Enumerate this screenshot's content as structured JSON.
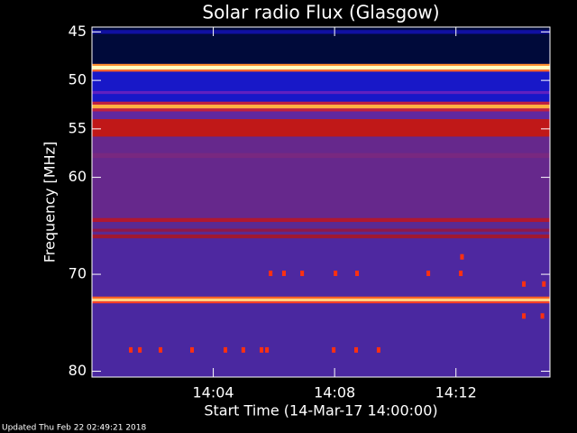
{
  "chart_data": {
    "type": "spectrogram",
    "title": "Solar radio Flux (Glasgow)",
    "y_label": "Frequency [MHz]",
    "x_label": "Start Time (14-Mar-17 14:00:00)",
    "footer": "Updated Thu Feb 22 02:49:21 2018",
    "background": "#5a2a92",
    "xlim": [
      0,
      15.1
    ],
    "xticks": [
      {
        "value": 4,
        "label": "14:04"
      },
      {
        "value": 8,
        "label": "14:08"
      },
      {
        "value": 12,
        "label": "14:12"
      }
    ],
    "ylim": [
      44.5,
      80.6
    ],
    "yticks": [
      45,
      50,
      55,
      60,
      70,
      80
    ],
    "y_inverted": true,
    "bands": [
      {
        "from": 44.5,
        "to": 48.3,
        "color": "#000a3a"
      },
      {
        "from": 44.8,
        "to": 45.2,
        "color": "#1010a0"
      },
      {
        "from": 48.3,
        "to": 48.5,
        "color": "#ff9030"
      },
      {
        "from": 48.5,
        "to": 48.9,
        "color": "#ffffc0"
      },
      {
        "from": 48.9,
        "to": 49.1,
        "color": "#ff6020"
      },
      {
        "from": 49.1,
        "to": 52.2,
        "color": "#1818c8"
      },
      {
        "from": 51.1,
        "to": 51.4,
        "color": "#6020c0"
      },
      {
        "from": 52.2,
        "to": 52.5,
        "color": "#c02040"
      },
      {
        "from": 52.5,
        "to": 52.9,
        "color": "#ffb040"
      },
      {
        "from": 52.9,
        "to": 53.2,
        "color": "#c02040"
      },
      {
        "from": 53.2,
        "to": 54,
        "color": "#6028a0"
      },
      {
        "from": 54,
        "to": 55.8,
        "color": "#c01818"
      },
      {
        "from": 55.8,
        "to": 64.2,
        "color": "#66288c"
      },
      {
        "from": 57.5,
        "to": 58,
        "color": "#782880"
      },
      {
        "from": 64.2,
        "to": 64.6,
        "color": "#b01830"
      },
      {
        "from": 65.3,
        "to": 65.6,
        "color": "#901848"
      },
      {
        "from": 65.9,
        "to": 66.3,
        "color": "#a01830"
      },
      {
        "from": 66.3,
        "to": 72.3,
        "color": "#4e28a0"
      },
      {
        "from": 72.3,
        "to": 72.5,
        "color": "#ff6020"
      },
      {
        "from": 72.5,
        "to": 72.8,
        "color": "#ffd080"
      },
      {
        "from": 72.8,
        "to": 73,
        "color": "#ff4020"
      },
      {
        "from": 73,
        "to": 80.6,
        "color": "#4a28a0"
      }
    ],
    "bursts": {
      "color": "#ff3010",
      "x": [
        1.28,
        1.58,
        2.26,
        3.3,
        4.4,
        4.99,
        5.59,
        5.77,
        7.97,
        8.71,
        9.45,
        5.89,
        6.33,
        6.93,
        8.03,
        8.74,
        11.09,
        12.16,
        12.2,
        14.24,
        14.9,
        14.24,
        14.85
      ],
      "y": [
        77.8,
        77.8,
        77.8,
        77.8,
        77.8,
        77.8,
        77.8,
        77.8,
        77.8,
        77.8,
        77.8,
        69.9,
        69.9,
        69.9,
        69.9,
        69.9,
        69.9,
        69.9,
        68.2,
        71.0,
        71.0,
        74.3,
        74.3
      ]
    }
  }
}
